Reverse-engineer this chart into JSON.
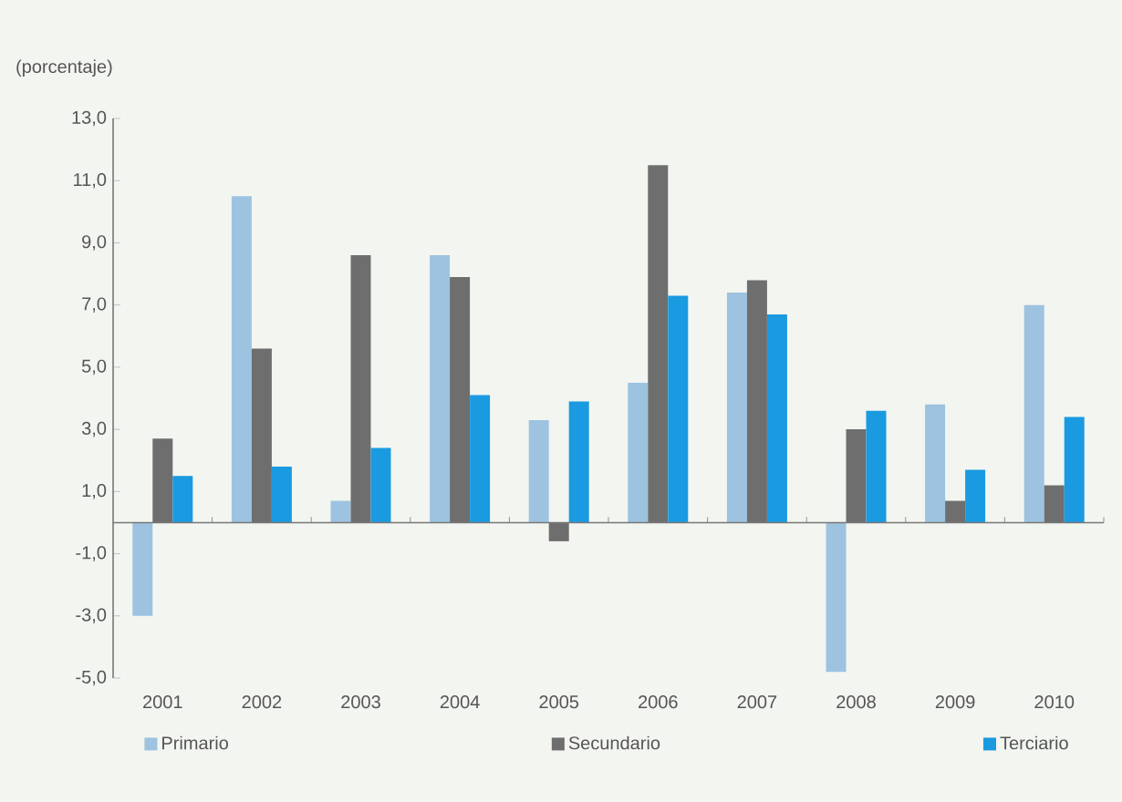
{
  "chart_data": {
    "type": "bar",
    "ylabel": "(porcentaje)",
    "categories": [
      "2001",
      "2002",
      "2003",
      "2004",
      "2005",
      "2006",
      "2007",
      "2008",
      "2009",
      "2010"
    ],
    "series": [
      {
        "name": "Primario",
        "color": "#9dc3e0",
        "values": [
          -3.0,
          10.5,
          0.7,
          8.6,
          3.3,
          4.5,
          7.4,
          -4.8,
          3.8,
          7.0
        ]
      },
      {
        "name": "Secundario",
        "color": "#6e6e6e",
        "values": [
          2.7,
          5.6,
          8.6,
          7.9,
          -0.6,
          11.5,
          7.8,
          3.0,
          0.7,
          1.2
        ]
      },
      {
        "name": "Terciario",
        "color": "#1a9ae0",
        "values": [
          1.5,
          1.8,
          2.4,
          4.1,
          3.9,
          7.3,
          6.7,
          3.6,
          1.7,
          3.4
        ]
      }
    ],
    "ylim": [
      -5,
      13
    ],
    "yticks": [
      {
        "value": -5,
        "label": "-5,0"
      },
      {
        "value": -3,
        "label": "-3,0"
      },
      {
        "value": -1,
        "label": "-1,0"
      },
      {
        "value": 1,
        "label": "1,0"
      },
      {
        "value": 3,
        "label": "3,0"
      },
      {
        "value": 5,
        "label": "5,0"
      },
      {
        "value": 7,
        "label": "7,0"
      },
      {
        "value": 9,
        "label": "9,0"
      },
      {
        "value": 11,
        "label": "11,0"
      },
      {
        "value": 13,
        "label": "13,0"
      }
    ],
    "legend": "bottom",
    "grid": false
  }
}
